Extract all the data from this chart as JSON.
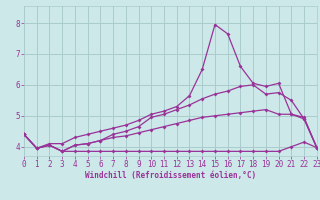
{
  "xlabel": "Windchill (Refroidissement éolien,°C)",
  "bg_color": "#cce8e8",
  "grid_color": "#aacccc",
  "line_color": "#993399",
  "xlim": [
    0,
    23
  ],
  "ylim": [
    3.7,
    8.55
  ],
  "yticks": [
    4,
    5,
    6,
    7,
    8
  ],
  "xticks": [
    0,
    1,
    2,
    3,
    4,
    5,
    6,
    7,
    8,
    9,
    10,
    11,
    12,
    13,
    14,
    15,
    16,
    17,
    18,
    19,
    20,
    21,
    22,
    23
  ],
  "lines": [
    [
      4.4,
      3.95,
      4.05,
      3.85,
      3.85,
      3.85,
      3.85,
      3.85,
      3.85,
      3.85,
      3.85,
      3.85,
      3.85,
      3.85,
      3.85,
      3.85,
      3.85,
      3.85,
      3.85,
      3.85,
      3.85,
      4.0,
      4.15,
      3.97
    ],
    [
      4.4,
      3.95,
      4.05,
      3.85,
      4.05,
      4.1,
      4.2,
      4.3,
      4.35,
      4.45,
      4.55,
      4.65,
      4.75,
      4.85,
      4.95,
      5.0,
      5.05,
      5.1,
      5.15,
      5.2,
      5.05,
      5.05,
      4.95,
      3.97
    ],
    [
      4.4,
      3.95,
      4.05,
      3.85,
      4.05,
      4.1,
      4.2,
      4.4,
      4.5,
      4.65,
      4.95,
      5.05,
      5.2,
      5.35,
      5.55,
      5.7,
      5.8,
      5.95,
      6.0,
      5.7,
      5.75,
      5.5,
      4.9,
      3.97
    ],
    [
      4.4,
      3.95,
      4.1,
      4.1,
      4.3,
      4.4,
      4.5,
      4.6,
      4.7,
      4.85,
      5.05,
      5.15,
      5.3,
      5.65,
      6.5,
      7.95,
      7.65,
      6.6,
      6.05,
      5.95,
      6.05,
      5.05,
      4.9,
      3.97
    ]
  ]
}
